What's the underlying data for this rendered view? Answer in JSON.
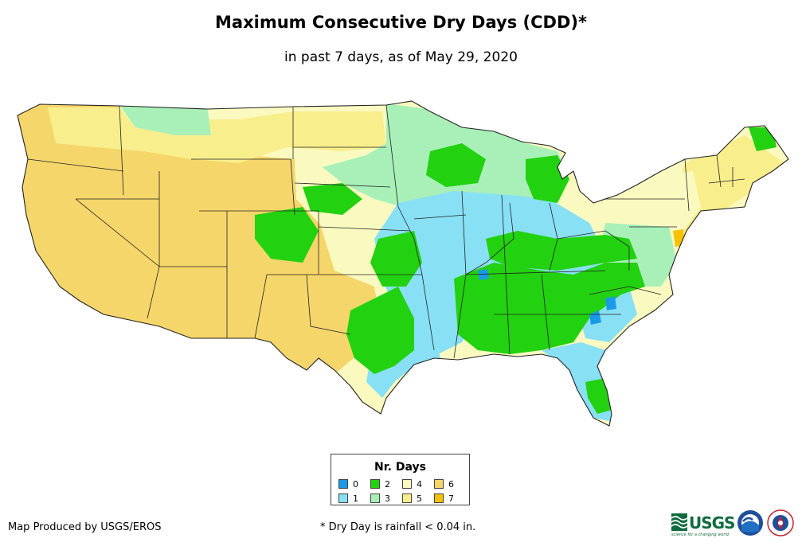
{
  "header": {
    "title": "Maximum Consecutive Dry Days (CDD)*",
    "subtitle": "in past 7 days, as of May 29, 2020"
  },
  "legend": {
    "title": "Nr. Days",
    "items": [
      {
        "label": "0",
        "color": "#1a9ae6"
      },
      {
        "label": "2",
        "color": "#22d10f"
      },
      {
        "label": "4",
        "color": "#fafac0"
      },
      {
        "label": "6",
        "color": "#f5d66a"
      },
      {
        "label": "1",
        "color": "#88e0f5"
      },
      {
        "label": "3",
        "color": "#a8f0b8"
      },
      {
        "label": "5",
        "color": "#f8ee8c"
      },
      {
        "label": "7",
        "color": "#f5c200"
      }
    ]
  },
  "footer": {
    "credit": "Map Produced by USGS/EROS",
    "note": "* Dry Day is rainfall < 0.04 in."
  },
  "logos": {
    "usgs_text": "USGS",
    "usgs_tagline": "science for a changing world",
    "noaa_text": "NOAA",
    "nws_text": "NWS"
  },
  "map": {
    "region": "Contiguous United States",
    "regions": [
      {
        "name": "west-coast-and-southwest",
        "value_days": 6
      },
      {
        "name": "great-basin-and-rockies",
        "value_days": 6
      },
      {
        "name": "northern-rockies-and-plains",
        "value_days": 5
      },
      {
        "name": "northern-plains-and-upper-midwest",
        "value_days": 3
      },
      {
        "name": "central-mississippi-valley",
        "value_days": 1
      },
      {
        "name": "southeast-and-ohio-valley",
        "value_days": 2
      },
      {
        "name": "florida-and-gulf-coast",
        "value_days": 1
      },
      {
        "name": "texas-and-southern-plains",
        "value_days": 2
      },
      {
        "name": "northeast",
        "value_days": 4
      }
    ]
  }
}
